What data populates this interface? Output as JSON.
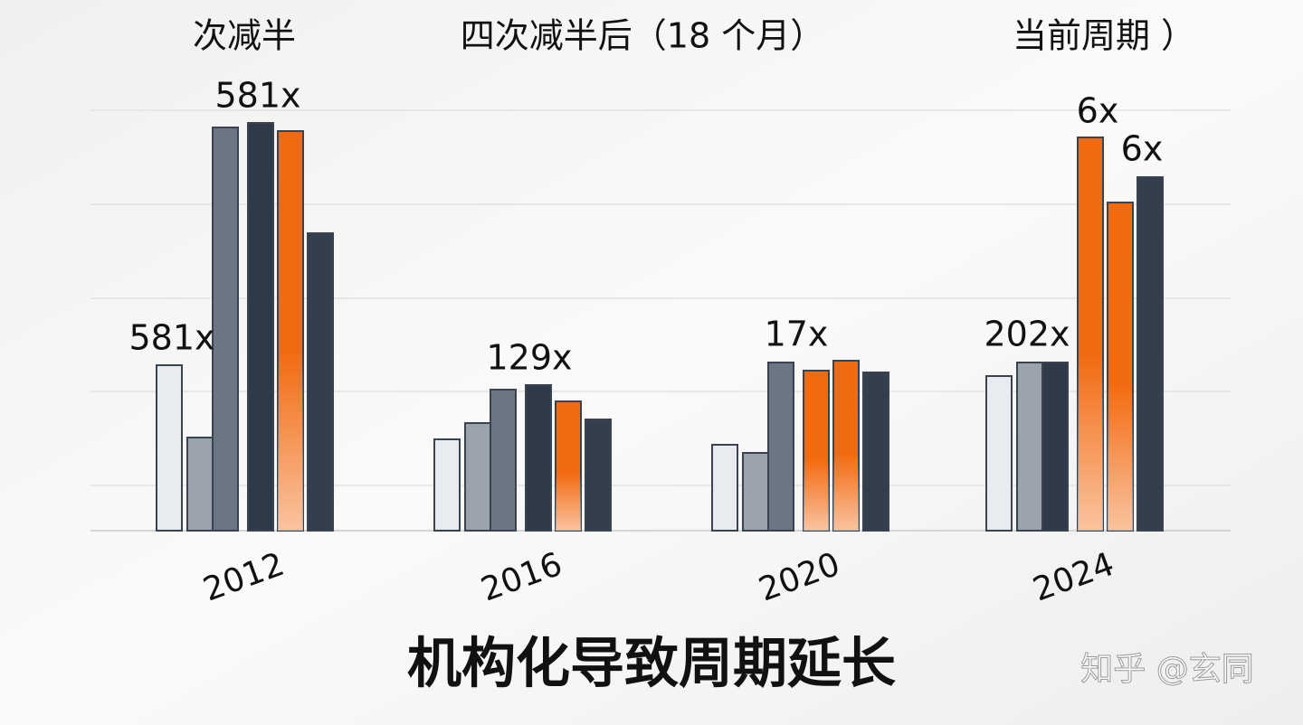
{
  "chart_data": {
    "type": "bar",
    "group_titles": [
      "次减半",
      "四次减半后（18 个月）",
      "当前周期 ）"
    ],
    "title": "机构化导致周期延长",
    "watermark": "知乎 @玄同",
    "categories": [
      "2012",
      "2016",
      "2020",
      "2024"
    ],
    "series": [
      {
        "colors": [
          "#e8ecf0",
          "#e8ecf0",
          "#e8ecf0",
          "#e8ecf0"
        ],
        "values": [
          183,
          101,
          95,
          171
        ]
      },
      {
        "colors": [
          "#9aa3ad",
          "#9aa3ad",
          "#9aa3ad",
          "#9aa3ad"
        ],
        "values": [
          103,
          119,
          86,
          186
        ]
      },
      {
        "colors": [
          "#6b7682",
          "#6b7682",
          "#6b7682",
          "#2f3a48"
        ],
        "values": [
          446,
          156,
          186,
          186
        ]
      },
      {
        "colors": [
          "#2f3a48",
          "#2f3a48",
          "#f26a10",
          "#f26a10"
        ],
        "values": [
          451,
          161,
          177,
          435
        ]
      },
      {
        "colors": [
          "#f26a10",
          "#f26a10",
          "#f26a10",
          "#f26a10"
        ],
        "values": [
          442,
          143,
          188,
          363
        ]
      },
      {
        "colors": [
          "#343f4d",
          "#343f4d",
          "#343f4d",
          "#343f4d"
        ],
        "values": [
          329,
          123,
          175,
          391
        ]
      }
    ],
    "annotations": [
      "581x",
      "581x",
      "129x",
      "17x",
      "202x",
      "6x",
      "6x"
    ],
    "ylim": [
      0,
      480
    ],
    "yticks": [
      50,
      154,
      257,
      361,
      465
    ],
    "grid": true
  }
}
